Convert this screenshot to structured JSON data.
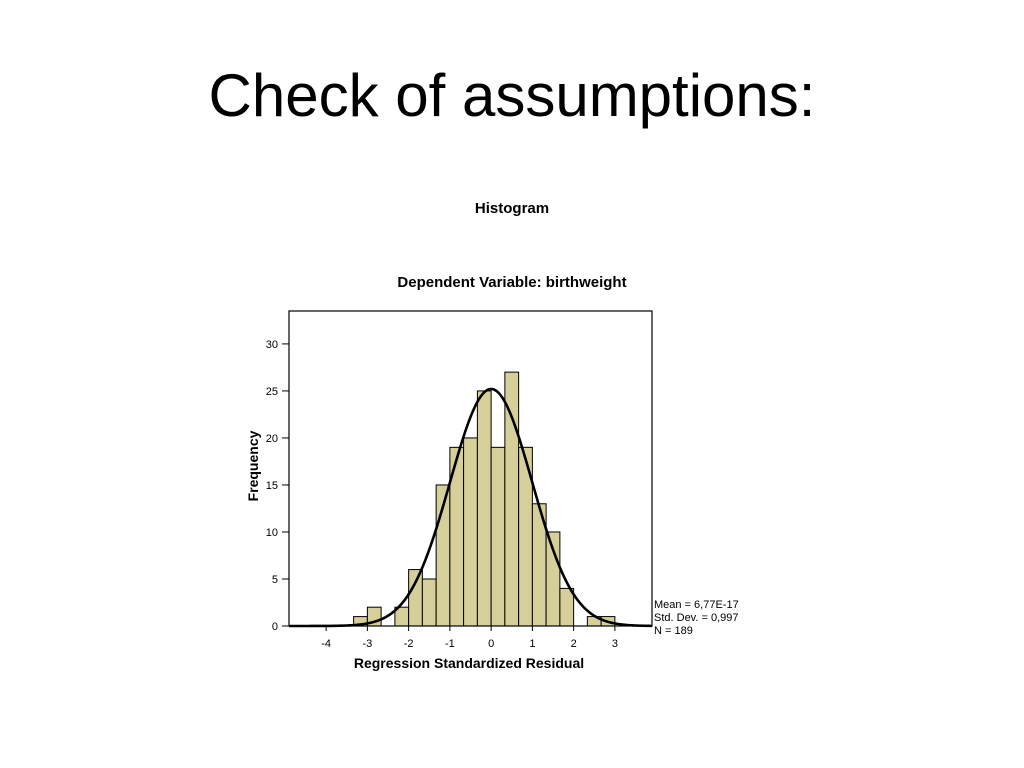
{
  "slide": {
    "title": "Check of assumptions:"
  },
  "colors": {
    "bar_fill": "#d7cf9a",
    "bar_stroke": "#000000",
    "curve": "#000000",
    "background": "#ffffff"
  },
  "chart_data": {
    "type": "bar",
    "title": "Histogram",
    "subtitle": "Dependent Variable: birthweight",
    "xlabel": "Regression Standardized Residual",
    "ylabel": "Frequency",
    "xlim": [
      -4.9,
      3.9
    ],
    "ylim": [
      0,
      33.5
    ],
    "x_ticks": [
      -4,
      -3,
      -2,
      -1,
      0,
      1,
      2,
      3
    ],
    "y_ticks": [
      0,
      5,
      10,
      15,
      20,
      25,
      30
    ],
    "bin_width": 0.3333,
    "bins": [
      {
        "start": -3.333,
        "end": -3.0,
        "count": 1
      },
      {
        "start": -3.0,
        "end": -2.667,
        "count": 2
      },
      {
        "start": -2.667,
        "end": -2.333,
        "count": 0
      },
      {
        "start": -2.333,
        "end": -2.0,
        "count": 2
      },
      {
        "start": -2.0,
        "end": -1.667,
        "count": 6
      },
      {
        "start": -1.667,
        "end": -1.333,
        "count": 5
      },
      {
        "start": -1.333,
        "end": -1.0,
        "count": 15
      },
      {
        "start": -1.0,
        "end": -0.667,
        "count": 19
      },
      {
        "start": -0.667,
        "end": -0.333,
        "count": 20
      },
      {
        "start": -0.333,
        "end": 0.0,
        "count": 25
      },
      {
        "start": 0.0,
        "end": 0.333,
        "count": 19
      },
      {
        "start": 0.333,
        "end": 0.667,
        "count": 27
      },
      {
        "start": 0.667,
        "end": 1.0,
        "count": 19
      },
      {
        "start": 1.0,
        "end": 1.333,
        "count": 13
      },
      {
        "start": 1.333,
        "end": 1.667,
        "count": 10
      },
      {
        "start": 1.667,
        "end": 2.0,
        "count": 4
      },
      {
        "start": 2.0,
        "end": 2.333,
        "count": 0
      },
      {
        "start": 2.333,
        "end": 2.667,
        "count": 1
      },
      {
        "start": 2.667,
        "end": 3.0,
        "count": 1
      }
    ],
    "normal_curve": {
      "mean": 0,
      "sd": 0.997,
      "n": 189
    },
    "stats": {
      "mean": "Mean = 6,77E-17",
      "std_dev": "Std. Dev. = 0,997",
      "n": "N = 189"
    },
    "grid": false
  }
}
